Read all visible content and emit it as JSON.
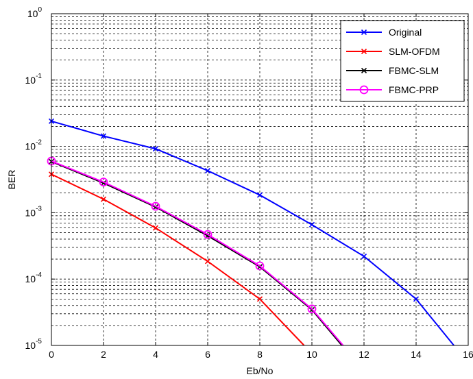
{
  "chart_data": {
    "type": "line",
    "xlabel": "Eb/No",
    "ylabel": "BER",
    "xlim": [
      0,
      16
    ],
    "ylim": [
      1e-05,
      1
    ],
    "yscale": "log",
    "grid": true,
    "legend_position": "top-right",
    "x_ticks": [
      "0",
      "2",
      "4",
      "6",
      "8",
      "10",
      "12",
      "14",
      "16"
    ],
    "y_ticks": [
      {
        "base": "10",
        "exp": "-5",
        "value": 1e-05
      },
      {
        "base": "10",
        "exp": "-4",
        "value": 0.0001
      },
      {
        "base": "10",
        "exp": "-3",
        "value": 0.001
      },
      {
        "base": "10",
        "exp": "-2",
        "value": 0.01
      },
      {
        "base": "10",
        "exp": "-1",
        "value": 0.1
      },
      {
        "base": "10",
        "exp": "0",
        "value": 1
      }
    ],
    "series": [
      {
        "name": "Original",
        "color": "#0000ff",
        "marker": "x",
        "x": [
          0,
          2,
          4,
          6,
          8,
          10,
          12,
          14,
          15.45
        ],
        "y": [
          0.024,
          0.0143,
          0.0092,
          0.0043,
          0.00185,
          0.00066,
          0.00022,
          5e-05,
          1e-05
        ]
      },
      {
        "name": "SLM-OFDM",
        "color": "#ff0000",
        "marker": "x",
        "x": [
          0,
          2,
          4,
          6,
          8,
          9.7
        ],
        "y": [
          0.0038,
          0.0016,
          0.00059,
          0.000185,
          5e-05,
          1e-05
        ]
      },
      {
        "name": "FBMC-SLM",
        "color": "#000000",
        "marker": "x",
        "x": [
          0,
          2,
          4,
          6,
          8,
          10,
          11.15
        ],
        "y": [
          0.0059,
          0.0028,
          0.00122,
          0.00045,
          0.000153,
          3.45e-05,
          1e-05
        ]
      },
      {
        "name": "FBMC-PRP",
        "color": "#ff00ff",
        "marker": "o",
        "x": [
          0,
          2,
          4,
          6,
          8,
          10,
          11.2
        ],
        "y": [
          0.006,
          0.0029,
          0.00125,
          0.00047,
          0.000158,
          3.55e-05,
          1e-05
        ],
        "marker_x": [
          0,
          2,
          4,
          6,
          8,
          10
        ]
      }
    ]
  }
}
